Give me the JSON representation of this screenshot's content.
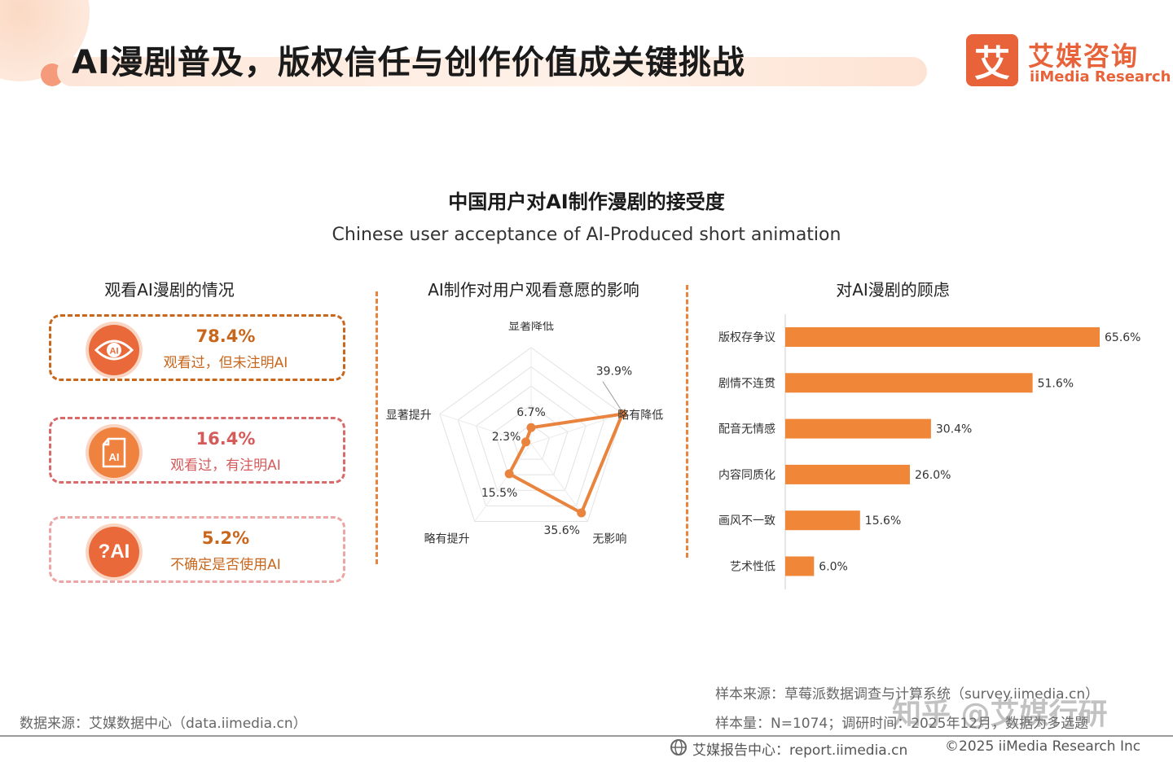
{
  "header": {
    "title": "AI漫剧普及，版权信任与创作价值成关键挑战",
    "logo_mark": "艾",
    "logo_cn": "艾媒咨询",
    "logo_en": "iiMedia Research"
  },
  "chart_title_cn": "中国用户对AI制作漫剧的接受度",
  "chart_title_en": "Chinese user acceptance of AI-Produced short animation",
  "viewing": {
    "title": "观看AI漫剧的情况",
    "items": [
      {
        "value": "78.4%",
        "label": "观看过，但未注明AI",
        "icon": "eye-ai-icon",
        "icon_text": "AI",
        "color": "#c8661c"
      },
      {
        "value": "16.4%",
        "label": "观看过，有注明AI",
        "icon": "ai-document-icon",
        "icon_text": "AI",
        "color": "#d55a5a"
      },
      {
        "value": "5.2%",
        "label": "不确定是否使用AI",
        "icon": "question-ai-icon",
        "icon_text": "?AI",
        "color": "#c8661c"
      }
    ]
  },
  "chart_data": [
    {
      "type": "radar",
      "title": "AI制作对用户观看意愿的影响",
      "categories": [
        "显著降低",
        "略有降低",
        "无影响",
        "略有提升",
        "显著提升"
      ],
      "values": [
        6.7,
        39.9,
        35.6,
        15.5,
        2.3
      ],
      "value_labels": [
        "6.7%",
        "39.9%",
        "35.6%",
        "15.5%",
        "2.3%"
      ],
      "rmax": 40,
      "grid_levels": 5,
      "color": "#e9843f"
    },
    {
      "type": "bar",
      "orientation": "horizontal",
      "title": "对AI漫剧的顾虑",
      "categories": [
        "版权存争议",
        "剧情不连贯",
        "配音无情感",
        "内容同质化",
        "画风不一致",
        "艺术性低"
      ],
      "values": [
        65.6,
        51.6,
        30.4,
        26.0,
        15.6,
        6.0
      ],
      "value_labels": [
        "65.6%",
        "51.6%",
        "30.4%",
        "26.0%",
        "15.6%",
        "6.0%"
      ],
      "xlim": [
        0,
        65.6
      ],
      "color": "#ef8638"
    }
  ],
  "footer": {
    "sample_source": "样本来源：草莓派数据调查与计算系统（survey.iimedia.cn）",
    "sample_size": "样本量：N=1074；调研时间：2025年12月，数据为多选题",
    "data_source": "数据来源：艾媒数据中心（data.iimedia.cn）",
    "report_center": "艾媒报告中心：report.iimedia.cn",
    "copyright": "©2025  iiMedia Research  Inc",
    "watermark": "知乎 @艾媒行研"
  }
}
